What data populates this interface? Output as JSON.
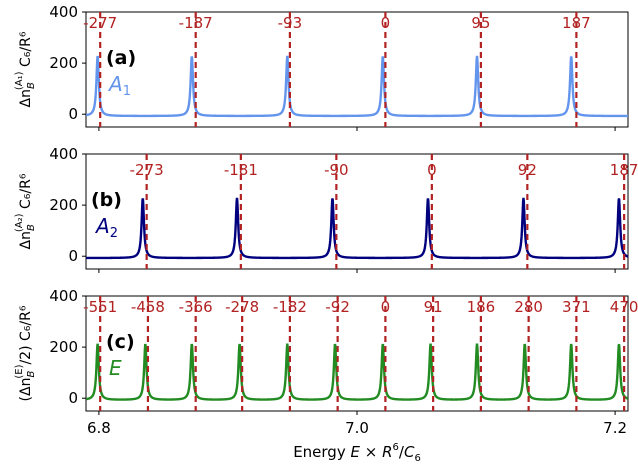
{
  "chart_data": [
    {
      "type": "line",
      "panel": "(a)",
      "symmetry": "A",
      "symmetry_sub": "1",
      "color": "#6495ed",
      "ylabel_parts": {
        "pre": "Δn",
        "sub": "B",
        "sup": "(A₁)",
        "post": " C₆/R⁶"
      },
      "ylim": [
        -50,
        400
      ],
      "yticks": [
        0,
        200,
        400
      ],
      "xlim": [
        6.79,
        7.21
      ],
      "peak_height": 235,
      "peaks": [
        6.799,
        6.872,
        6.946,
        7.02,
        7.093,
        7.166
      ],
      "vlines": [
        6.801,
        6.875,
        6.948,
        7.022,
        7.096,
        7.17
      ],
      "vline_labels": [
        "-277",
        "-187",
        "-93",
        "0",
        "95",
        "187"
      ]
    },
    {
      "type": "line",
      "panel": "(b)",
      "symmetry": "A",
      "symmetry_sub": "2",
      "color": "#00007f",
      "ylabel_parts": {
        "pre": "Δn",
        "sub": "B",
        "sup": "(A₂)",
        "post": " C₆/R⁶"
      },
      "ylim": [
        -50,
        400
      ],
      "yticks": [
        0,
        200,
        400
      ],
      "xlim": [
        6.79,
        7.21
      ],
      "peak_height": 235,
      "peaks": [
        6.834,
        6.907,
        6.981,
        7.055,
        7.129,
        7.203
      ],
      "vlines": [
        6.837,
        6.91,
        6.984,
        7.058,
        7.132,
        7.207
      ],
      "vline_labels": [
        "-273",
        "-181",
        "-90",
        "0",
        "92",
        "187"
      ]
    },
    {
      "type": "line",
      "panel": "(c)",
      "symmetry": "E",
      "symmetry_sub": "",
      "color": "#228b22",
      "ylabel_parts": {
        "pre": "(Δn",
        "sub": "B",
        "sup": "(E)",
        "post": "/2) C₆/R⁶"
      },
      "ylim": [
        -50,
        400
      ],
      "yticks": [
        0,
        200,
        400
      ],
      "xlim": [
        6.79,
        7.21
      ],
      "peak_height": 220,
      "peaks": [
        6.799,
        6.836,
        6.872,
        6.909,
        6.946,
        6.983,
        7.02,
        7.057,
        7.093,
        7.13,
        7.166,
        7.203
      ],
      "vlines": [
        6.801,
        6.838,
        6.875,
        6.911,
        6.948,
        6.985,
        7.022,
        7.059,
        7.096,
        7.133,
        7.17,
        7.207
      ],
      "vline_labels": [
        "-551",
        "-458",
        "-366",
        "-278",
        "-182",
        "-92",
        "0",
        "91",
        "186",
        "280",
        "371",
        "470"
      ]
    }
  ],
  "xaxis": {
    "ticks": [
      6.8,
      7.0,
      7.2
    ],
    "tick_labels": [
      "6.8",
      "7.0",
      "7.2"
    ],
    "minor_ticks": [
      6.9,
      7.1
    ],
    "label_parts": {
      "pre": "Energy ",
      "italic1": "E",
      "mid": " × ",
      "italic2": "R",
      "sup": "6",
      "mid2": "/",
      "italic3": "C",
      "sub": "6"
    }
  },
  "vline_color": "#b22222"
}
